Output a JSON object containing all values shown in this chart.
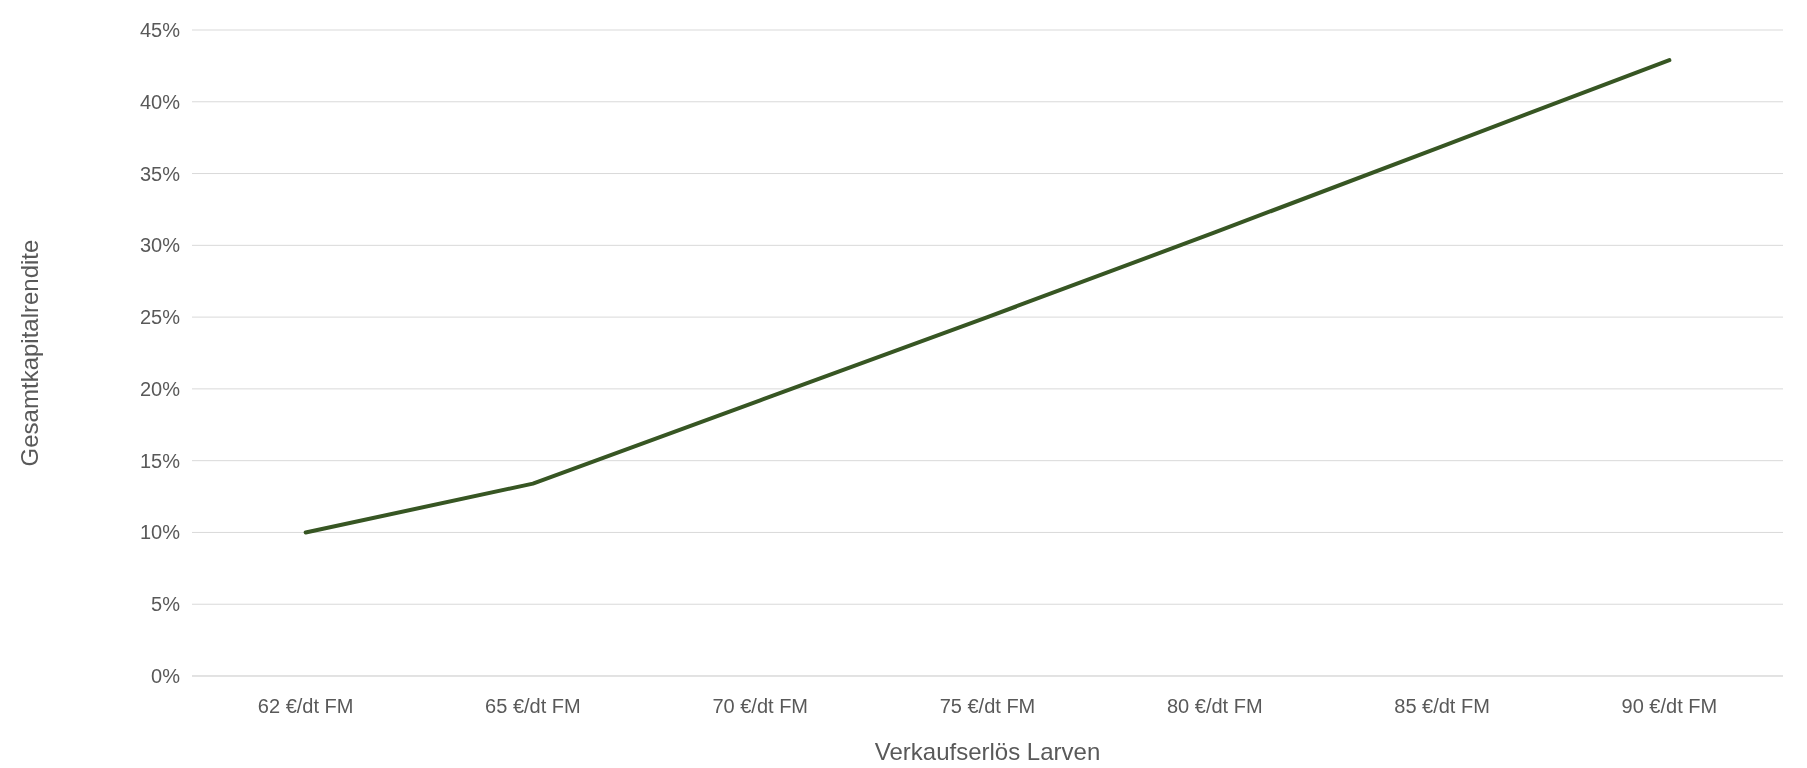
{
  "chart_data": {
    "type": "line",
    "xlabel": "Verkaufserlös Larven",
    "ylabel": "Gesamtkapitalrendite",
    "categories": [
      "62 €/dt FM",
      "65 €/dt FM",
      "70 €/dt FM",
      "75 €/dt FM",
      "80 €/dt FM",
      "85 €/dt FM",
      "90 €/dt FM"
    ],
    "series": [
      {
        "color": "#375623",
        "values": [
          10.0,
          13.4,
          19.2,
          25.0,
          30.9,
          36.9,
          42.9
        ]
      }
    ],
    "ylim": [
      0,
      45
    ],
    "yticks": [
      {
        "value": 0,
        "label": "0%"
      },
      {
        "value": 5,
        "label": "5%"
      },
      {
        "value": 10,
        "label": "10%"
      },
      {
        "value": 15,
        "label": "15%"
      },
      {
        "value": 20,
        "label": "20%"
      },
      {
        "value": 25,
        "label": "25%"
      },
      {
        "value": 30,
        "label": "30%"
      },
      {
        "value": 35,
        "label": "35%"
      },
      {
        "value": 40,
        "label": "40%"
      },
      {
        "value": 45,
        "label": "45%"
      }
    ],
    "grid": "y",
    "marker": "none",
    "line_style": "solid"
  }
}
